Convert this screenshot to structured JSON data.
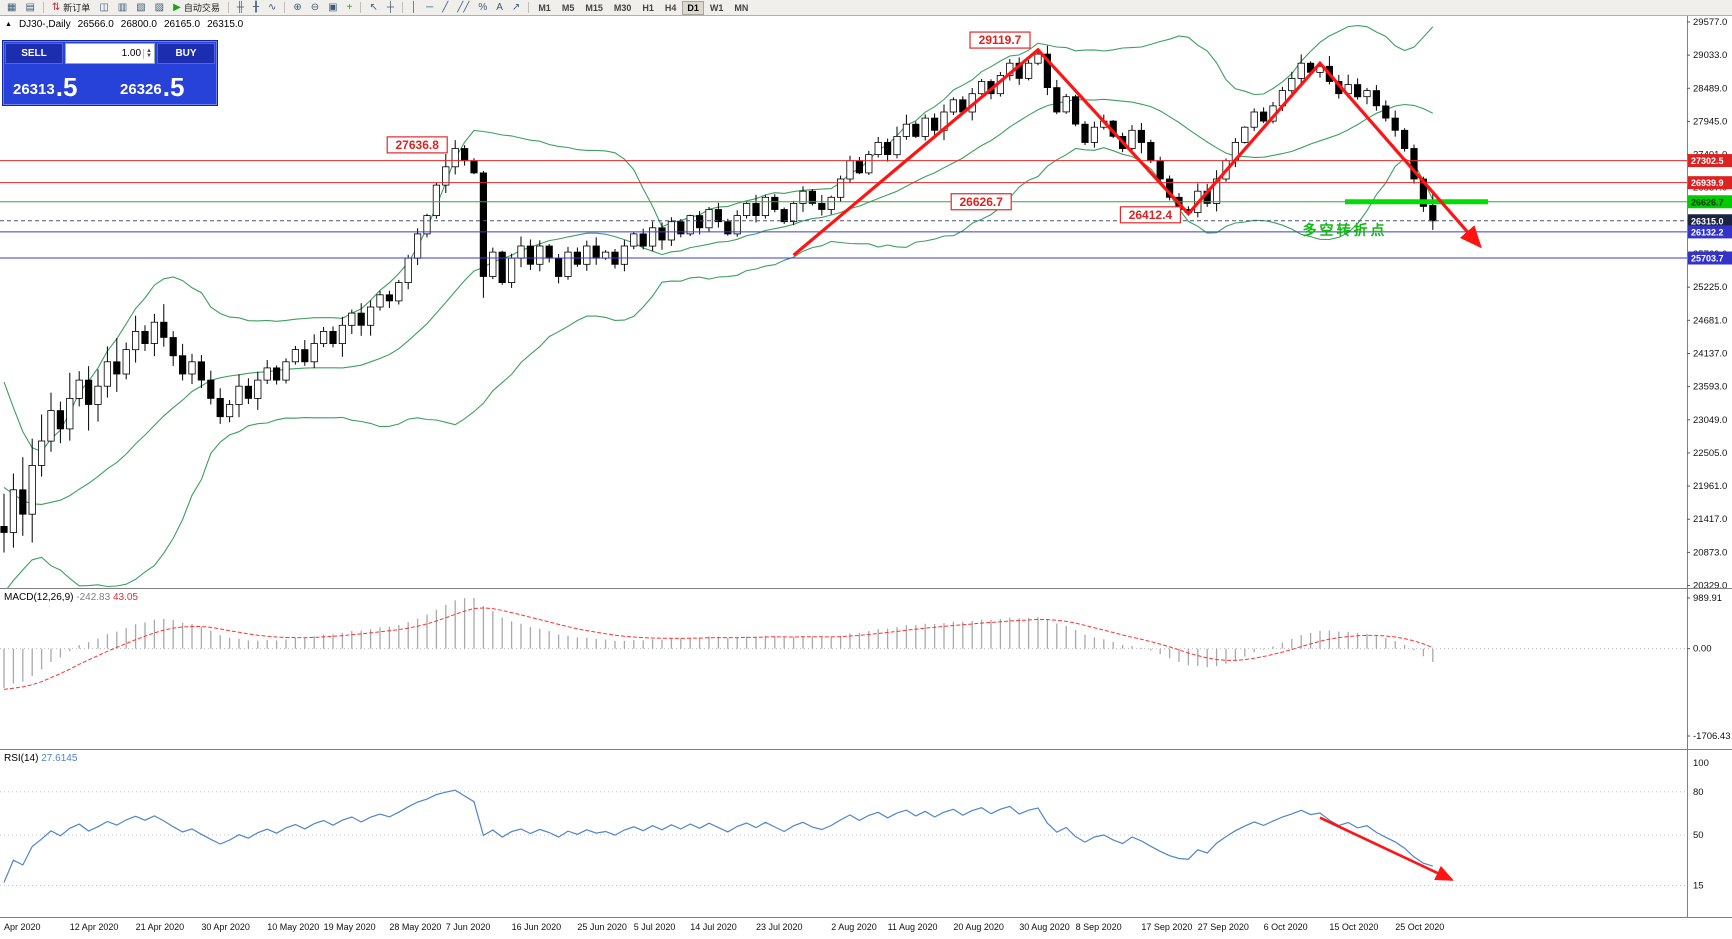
{
  "colors": {
    "red_level": "#dd2222",
    "blue_level": "#3333cc",
    "green_level": "#00cc00",
    "current_level": "#1a2342",
    "bollinger": "#3da05e",
    "bear": "#000000",
    "bull": "#ffffff",
    "macd_hist": "#a8a8a8",
    "macd_signal": "#ff3333",
    "rsi_line": "#4f86c6",
    "trend_arrow": "#ff1313",
    "panel_blue": "#2742d8"
  },
  "toolbar": {
    "items": [
      {
        "name": "new-chart-button",
        "glyph": "▦"
      },
      {
        "name": "profiles-button",
        "glyph": "▤"
      },
      {
        "sep": true
      },
      {
        "name": "new-order-button",
        "glyph": "⇅",
        "glyph_color": "#cc3333",
        "label": "新订单"
      },
      {
        "name": "chart-windows-button",
        "glyph": "◫"
      },
      {
        "name": "market-watch-button",
        "glyph": "▥"
      },
      {
        "name": "data-window-button",
        "glyph": "▧"
      },
      {
        "name": "terminal-button",
        "glyph": "▨"
      },
      {
        "name": "autotrading-button",
        "glyph": "▶",
        "glyph_color": "#19a519",
        "label": "自动交易"
      },
      {
        "sep": true
      },
      {
        "name": "bar-chart-button",
        "glyph": "╫"
      },
      {
        "name": "candlestick-chart-button",
        "glyph": "╂"
      },
      {
        "name": "line-chart-button",
        "glyph": "∿"
      },
      {
        "sep": true
      },
      {
        "name": "zoom-in-button",
        "glyph": "⊕"
      },
      {
        "name": "zoom-out-button",
        "glyph": "⊖"
      },
      {
        "name": "tile-windows-button",
        "glyph": "▣"
      },
      {
        "name": "indicators-button",
        "glyph": "+",
        "glyph_color": "#19a519"
      },
      {
        "sep": true
      },
      {
        "name": "cursor-button",
        "glyph": "↖"
      },
      {
        "name": "crosshair-button",
        "glyph": "┼"
      },
      {
        "sep": true
      },
      {
        "name": "vertical-line-button",
        "glyph": "│"
      },
      {
        "name": "horizontal-line-button",
        "glyph": "─"
      },
      {
        "name": "trendline-button",
        "glyph": "╱"
      },
      {
        "name": "channel-button",
        "glyph": "╱╱"
      },
      {
        "name": "fibonacci-button",
        "glyph": "%"
      },
      {
        "name": "text-button",
        "glyph": "A"
      },
      {
        "name": "arrow-tool-button",
        "glyph": "↗"
      },
      {
        "sep": true
      }
    ],
    "timeframes": [
      "M1",
      "M5",
      "M15",
      "M30",
      "H1",
      "H4",
      "D1",
      "W1",
      "MN"
    ],
    "active_timeframe": "D1"
  },
  "symbol_info": {
    "symbol": "DJ30-,Daily",
    "open": "26566.0",
    "high": "26800.0",
    "low": "26165.0",
    "close": "26315.0"
  },
  "trade_panel": {
    "sell_label": "SELL",
    "buy_label": "BUY",
    "volume": "1.00",
    "sell_price": "26313",
    "sell_price_big": ".5",
    "buy_price": "26326",
    "buy_price_big": ".5"
  },
  "chart_data": {
    "type": "candlestick",
    "symbol": "DJ30-",
    "timeframe": "Daily",
    "current_ohlc": [
      26566.0,
      26800.0,
      26165.0,
      26315.0
    ],
    "price_axis_ticks": [
      29577.0,
      29033.0,
      28489.0,
      27945.0,
      27401.0,
      26857.0,
      26313.0,
      25769.0,
      25225.0,
      24681.0,
      24137.0,
      23593.0,
      23049.0,
      22505.0,
      21961.0,
      21417.0,
      20873.0,
      20329.0
    ],
    "date_ticks": [
      {
        "label": "Apr 2020",
        "bar": 0
      },
      {
        "label": "12 Apr 2020",
        "bar": 7
      },
      {
        "label": "21 Apr 2020",
        "bar": 14
      },
      {
        "label": "30 Apr 2020",
        "bar": 21
      },
      {
        "label": "10 May 2020",
        "bar": 28
      },
      {
        "label": "19 May 2020",
        "bar": 34
      },
      {
        "label": "28 May 2020",
        "bar": 41
      },
      {
        "label": "7 Jun 2020",
        "bar": 47
      },
      {
        "label": "16 Jun 2020",
        "bar": 54
      },
      {
        "label": "25 Jun 2020",
        "bar": 61
      },
      {
        "label": "5 Jul 2020",
        "bar": 67
      },
      {
        "label": "14 Jul 2020",
        "bar": 73
      },
      {
        "label": "23 Jul 2020",
        "bar": 80
      },
      {
        "label": "2 Aug 2020",
        "bar": 88
      },
      {
        "label": "11 Aug 2020",
        "bar": 94
      },
      {
        "label": "20 Aug 2020",
        "bar": 101
      },
      {
        "label": "30 Aug 2020",
        "bar": 108
      },
      {
        "label": "8 Sep 2020",
        "bar": 114
      },
      {
        "label": "17 Sep 2020",
        "bar": 121
      },
      {
        "label": "27 Sep 2020",
        "bar": 127
      },
      {
        "label": "6 Oct 2020",
        "bar": 134
      },
      {
        "label": "15 Oct 2020",
        "bar": 141
      },
      {
        "label": "25 Oct 2020",
        "bar": 148
      }
    ],
    "warmup_closes": [
      24500,
      24100,
      23700,
      23300,
      22900,
      22500,
      22200,
      21900,
      21600,
      21400,
      21300,
      21500,
      21700,
      21450,
      21200,
      21350,
      21500,
      21300,
      21400,
      21300
    ],
    "closes": [
      21200,
      21900,
      21500,
      22300,
      22700,
      23200,
      22900,
      23400,
      23700,
      23300,
      23600,
      24000,
      23800,
      24200,
      24500,
      24300,
      24650,
      24400,
      24100,
      23800,
      24000,
      23700,
      23400,
      23100,
      23300,
      23600,
      23400,
      23700,
      23900,
      23700,
      24000,
      24200,
      24000,
      24300,
      24500,
      24300,
      24600,
      24800,
      24600,
      24900,
      25100,
      25000,
      25300,
      25700,
      26100,
      26400,
      26900,
      27200,
      27500,
      27300,
      27100,
      25400,
      25800,
      25300,
      25700,
      25900,
      25600,
      25900,
      25700,
      25400,
      25800,
      25600,
      25900,
      25700,
      25800,
      25600,
      25900,
      26100,
      25900,
      26200,
      26000,
      26300,
      26100,
      26400,
      26200,
      26500,
      26300,
      26100,
      26400,
      26600,
      26400,
      26700,
      26500,
      26300,
      26600,
      26800,
      26600,
      26500,
      26700,
      27000,
      27300,
      27100,
      27400,
      27600,
      27400,
      27700,
      27900,
      27700,
      28000,
      27800,
      28100,
      28300,
      28100,
      28400,
      28600,
      28400,
      28700,
      28900,
      28650,
      28900,
      29050,
      28500,
      28100,
      28350,
      27900,
      27600,
      27850,
      27950,
      27700,
      27500,
      27800,
      27600,
      27300,
      27000,
      26700,
      26500,
      26450,
      26800,
      26600,
      27000,
      27300,
      27600,
      27850,
      28100,
      27950,
      28200,
      28450,
      28650,
      28900,
      28750,
      28850,
      28600,
      28400,
      28550,
      28350,
      28450,
      28200,
      28000,
      27800,
      27500,
      27000,
      26550,
      26315
    ],
    "overrides": {
      "48": {
        "high": 27636.8
      },
      "51": {
        "low": 25050
      },
      "110": {
        "high": 29119.7
      },
      "126": {
        "low": 26412.4
      },
      "152": {
        "open": 26566,
        "high": 26800,
        "low": 26165
      }
    },
    "indicators": {
      "bollinger": {
        "period": 20,
        "deviation": 2
      },
      "macd": {
        "label": "MACD(12,26,9)",
        "value": "-242.83",
        "signal_value": "43.05",
        "axis_max": "989.91",
        "axis_zero": "0.00",
        "axis_min": "-1706.43"
      },
      "rsi": {
        "label": "RSI(14)",
        "value": "27.6145",
        "levels": [
          100,
          80,
          50,
          15
        ]
      }
    },
    "hlines": [
      {
        "price": 27302.5,
        "type": "red",
        "label": "27302.5"
      },
      {
        "price": 26939.9,
        "type": "red",
        "label": "26939.9"
      },
      {
        "price": 26626.7,
        "type": "green",
        "label": "26626.7"
      },
      {
        "price": 26315.0,
        "type": "current",
        "label": "26315.0"
      },
      {
        "price": 26132.2,
        "type": "blue",
        "label": "26132.2"
      },
      {
        "price": 25703.7,
        "type": "blue",
        "label": "25703.7"
      }
    ],
    "green_segment": {
      "price": 26626.7,
      "x1_frac": 0.797,
      "x2_frac": 0.882
    },
    "callouts": [
      {
        "text": "27636.8",
        "bar": 48,
        "price": 27560
      },
      {
        "text": "29119.7",
        "bar": 110,
        "price": 29280
      },
      {
        "text": "26626.7",
        "bar": 108,
        "price": 26626.7
      },
      {
        "text": "26412.4",
        "bar": 126,
        "price": 26412.4
      }
    ],
    "annotation": {
      "text": "多空转折点",
      "x_frac": 0.797,
      "price": 26080,
      "color": "#11b911"
    },
    "trend_arrows": {
      "points": [
        [
          84,
          25750
        ],
        [
          110,
          29119.7
        ],
        [
          126,
          26430
        ],
        [
          140,
          28900
        ],
        [
          157,
          25900
        ]
      ]
    },
    "rsi_arrow": {
      "from": [
        140,
        62
      ],
      "to": [
        154,
        19
      ]
    }
  }
}
